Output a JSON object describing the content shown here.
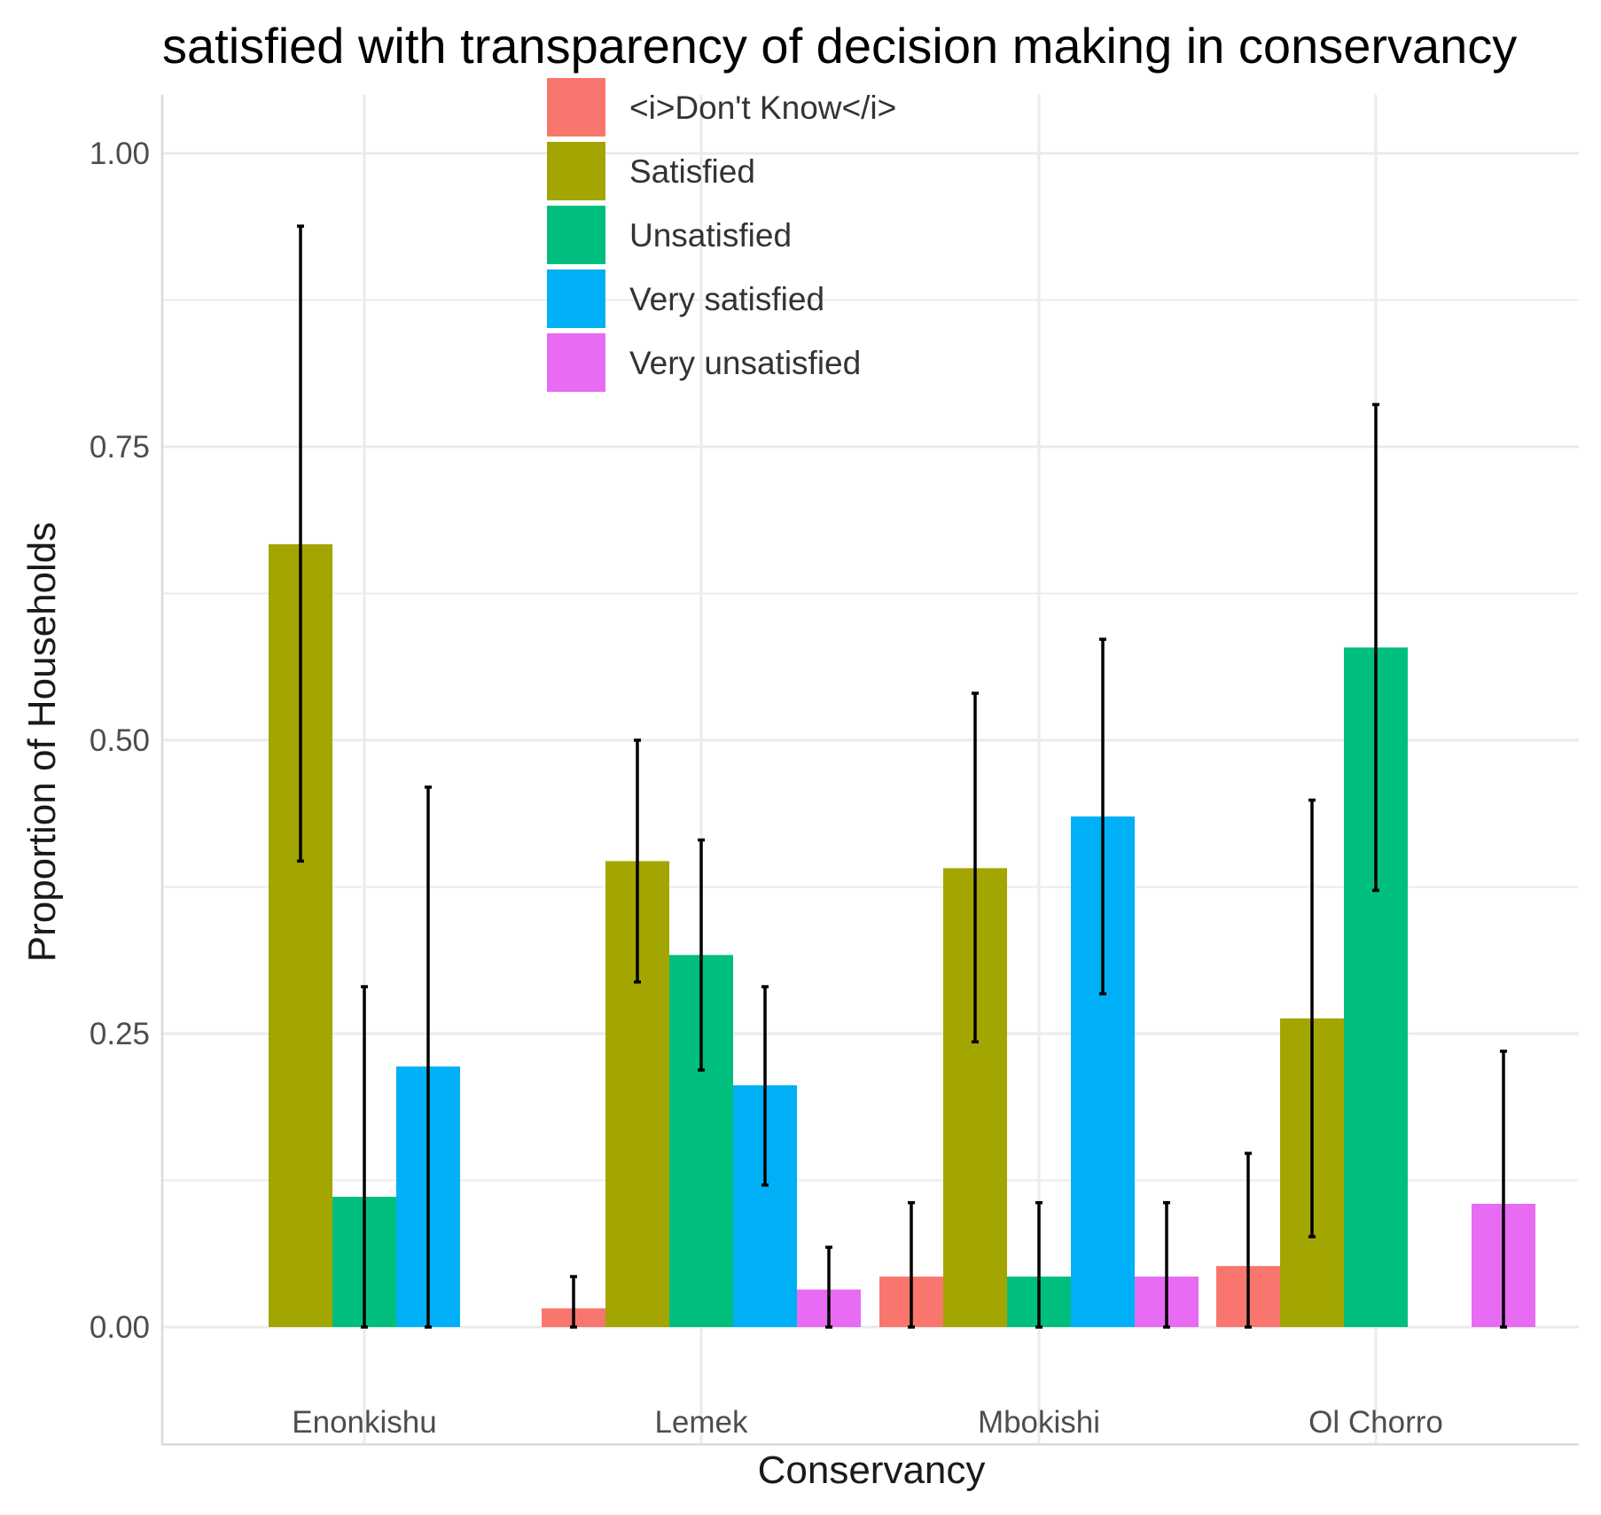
{
  "chart_data": {
    "type": "bar",
    "title": "satisfied with transparency of decision making in conservancy",
    "xlabel": "Conservancy",
    "ylabel": "Proportion of Households",
    "categories": [
      "Enonkishu",
      "Lemek",
      "Mbokishi",
      "Ol Chorro"
    ],
    "ylim": [
      -0.1,
      1.05
    ],
    "yticks": [
      "0.00",
      "0.25",
      "0.50",
      "0.75",
      "1.00"
    ],
    "ytick_values": [
      0,
      0.25,
      0.5,
      0.75,
      1.0
    ],
    "grid": true,
    "legend_position": "top",
    "series": [
      {
        "name": "<i>Don't Know</i>",
        "color": "#F8766D",
        "values": [
          null,
          0.016,
          0.043,
          0.052
        ],
        "err_low": [
          null,
          0.0,
          0.0,
          0.0
        ],
        "err_high": [
          null,
          0.043,
          0.106,
          0.148
        ]
      },
      {
        "name": "Satisfied",
        "color": "#A3A500",
        "values": [
          0.667,
          0.397,
          0.391,
          0.263
        ],
        "err_low": [
          0.397,
          0.294,
          0.243,
          0.077
        ],
        "err_high": [
          0.938,
          0.5,
          0.54,
          0.449
        ]
      },
      {
        "name": "Unsatisfied",
        "color": "#00BF7D",
        "values": [
          0.111,
          0.317,
          0.043,
          0.579
        ],
        "err_low": [
          0.0,
          0.219,
          0.0,
          0.372
        ],
        "err_high": [
          0.29,
          0.415,
          0.106,
          0.786
        ]
      },
      {
        "name": "Very satisfied",
        "color": "#00B0F6",
        "values": [
          0.222,
          0.206,
          0.435,
          null
        ],
        "err_low": [
          0.0,
          0.121,
          0.284,
          null
        ],
        "err_high": [
          0.46,
          0.29,
          0.586,
          null
        ]
      },
      {
        "name": "Very unsatisfied",
        "color": "#E76BF3",
        "values": [
          null,
          0.032,
          0.043,
          0.105
        ],
        "err_low": [
          null,
          0.0,
          0.0,
          0.0
        ],
        "err_high": [
          null,
          0.068,
          0.106,
          0.235
        ]
      }
    ]
  }
}
